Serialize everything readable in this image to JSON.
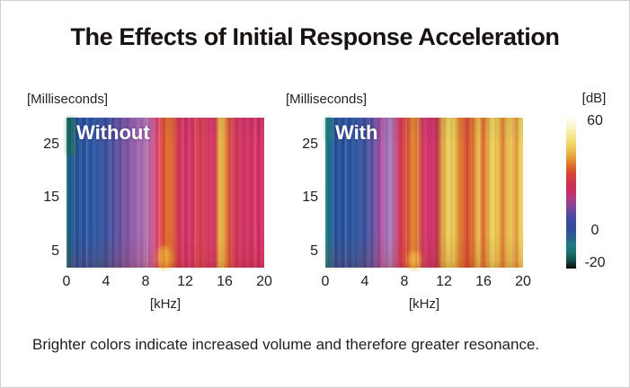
{
  "title": "The Effects of Initial Response Acceleration",
  "caption": "Brighter colors indicate increased volume and therefore greater resonance.",
  "chart_data": {
    "type": "heatmap",
    "description": "Two spectrograms (frequency vs. time, color = level in dB) comparing piano sound without and with Initial Response Acceleration.",
    "panels": [
      {
        "label": "Without",
        "y_axis_label": "[Milliseconds]",
        "x_axis_label": "[kHz]",
        "x_ticks": [
          0,
          4,
          8,
          12,
          16,
          20
        ],
        "y_ticks": [
          25,
          15,
          5
        ],
        "x_range_khz": [
          0,
          20
        ],
        "y_range_ms": [
          2,
          30
        ],
        "summary": "Low frequencies (0-8 kHz) stay blue/purple (lower level); 9-20 kHz is mostly red/magenta with isolated bright orange-yellow streaks near 10.5 kHz and 15.5 kHz.",
        "gradient_stops": [
          {
            "pos": 0,
            "color": "#1f7e7a"
          },
          {
            "pos": 1.5,
            "color": "#1b5f86"
          },
          {
            "pos": 4,
            "color": "#224f97"
          },
          {
            "pos": 8,
            "color": "#27519e"
          },
          {
            "pos": 14,
            "color": "#2c57a5"
          },
          {
            "pos": 18,
            "color": "#32519c"
          },
          {
            "pos": 22,
            "color": "#44519f"
          },
          {
            "pos": 27,
            "color": "#684f9f"
          },
          {
            "pos": 31,
            "color": "#7f55a6"
          },
          {
            "pos": 35,
            "color": "#9a5fae"
          },
          {
            "pos": 38,
            "color": "#a96bb4"
          },
          {
            "pos": 41,
            "color": "#b770af"
          },
          {
            "pos": 43,
            "color": "#c25d9c"
          },
          {
            "pos": 45,
            "color": "#d84e7e"
          },
          {
            "pos": 47,
            "color": "#e4485c"
          },
          {
            "pos": 49,
            "color": "#e05038"
          },
          {
            "pos": 51,
            "color": "#e2662c"
          },
          {
            "pos": 53,
            "color": "#df7229"
          },
          {
            "pos": 55,
            "color": "#da4740"
          },
          {
            "pos": 57,
            "color": "#d63359"
          },
          {
            "pos": 60,
            "color": "#d42f66"
          },
          {
            "pos": 63,
            "color": "#d63364"
          },
          {
            "pos": 66,
            "color": "#da4153"
          },
          {
            "pos": 68,
            "color": "#da3f50"
          },
          {
            "pos": 71,
            "color": "#d73560"
          },
          {
            "pos": 74,
            "color": "#d63064"
          },
          {
            "pos": 76,
            "color": "#db5a50"
          },
          {
            "pos": 77.5,
            "color": "#e8a93c"
          },
          {
            "pos": 79,
            "color": "#eaba4a"
          },
          {
            "pos": 80.5,
            "color": "#e2832f"
          },
          {
            "pos": 82,
            "color": "#dc5b36"
          },
          {
            "pos": 84,
            "color": "#d73f55"
          },
          {
            "pos": 87,
            "color": "#d6335f"
          },
          {
            "pos": 90,
            "color": "#d52f63"
          },
          {
            "pos": 93,
            "color": "#d63262"
          },
          {
            "pos": 96,
            "color": "#d42f66"
          },
          {
            "pos": 100,
            "color": "#cf2d68"
          }
        ]
      },
      {
        "label": "With",
        "y_axis_label": "[Milliseconds]",
        "x_axis_label": "[kHz]",
        "x_ticks": [
          0,
          4,
          8,
          12,
          16,
          20
        ],
        "y_ticks": [
          25,
          15,
          5
        ],
        "x_range_khz": [
          0,
          20
        ],
        "y_range_ms": [
          2,
          30
        ],
        "summary": "Noticeably brighter overall: broad yellow/gold and orange regions from 12-20 kHz (higher level), orange band near 8.5-9.5 kHz; low frequencies remain blue/purple.",
        "gradient_stops": [
          {
            "pos": 0,
            "color": "#27918b"
          },
          {
            "pos": 2,
            "color": "#1b6b8e"
          },
          {
            "pos": 5,
            "color": "#235098"
          },
          {
            "pos": 10,
            "color": "#28529f"
          },
          {
            "pos": 15,
            "color": "#2d55a3"
          },
          {
            "pos": 19,
            "color": "#37519e"
          },
          {
            "pos": 23,
            "color": "#55509f"
          },
          {
            "pos": 26,
            "color": "#7b52a4"
          },
          {
            "pos": 28,
            "color": "#b44a9b"
          },
          {
            "pos": 30,
            "color": "#a66cb4"
          },
          {
            "pos": 33,
            "color": "#ad7cbd"
          },
          {
            "pos": 35,
            "color": "#b55f9f"
          },
          {
            "pos": 36.5,
            "color": "#cc3f70"
          },
          {
            "pos": 38,
            "color": "#d93a51"
          },
          {
            "pos": 40,
            "color": "#dc4140"
          },
          {
            "pos": 42,
            "color": "#de5b33"
          },
          {
            "pos": 44,
            "color": "#e07c2c"
          },
          {
            "pos": 46,
            "color": "#e28a2e"
          },
          {
            "pos": 48,
            "color": "#d84d52"
          },
          {
            "pos": 51,
            "color": "#d23268"
          },
          {
            "pos": 54,
            "color": "#cf2e6c"
          },
          {
            "pos": 56,
            "color": "#c52d55"
          },
          {
            "pos": 58,
            "color": "#cf6f3a"
          },
          {
            "pos": 60,
            "color": "#e7b84a"
          },
          {
            "pos": 62,
            "color": "#eccb56"
          },
          {
            "pos": 64,
            "color": "#edd05c"
          },
          {
            "pos": 66,
            "color": "#e9b23e"
          },
          {
            "pos": 68,
            "color": "#e2862f"
          },
          {
            "pos": 70,
            "color": "#dc5f2c"
          },
          {
            "pos": 72,
            "color": "#d8442e"
          },
          {
            "pos": 74,
            "color": "#dd6e2d"
          },
          {
            "pos": 76,
            "color": "#e59a36"
          },
          {
            "pos": 78,
            "color": "#ecc04b"
          },
          {
            "pos": 80,
            "color": "#da5c2b"
          },
          {
            "pos": 82,
            "color": "#e8ad3e"
          },
          {
            "pos": 84,
            "color": "#edcb55"
          },
          {
            "pos": 86,
            "color": "#eed65f"
          },
          {
            "pos": 88,
            "color": "#e8a938"
          },
          {
            "pos": 90,
            "color": "#e18132"
          },
          {
            "pos": 92,
            "color": "#eabf4a"
          },
          {
            "pos": 94,
            "color": "#edd05a"
          },
          {
            "pos": 96,
            "color": "#e49134"
          },
          {
            "pos": 98,
            "color": "#ecc553"
          },
          {
            "pos": 100,
            "color": "#edd35d"
          }
        ]
      }
    ],
    "colorbar": {
      "label": "[dB]",
      "ticks": [
        60,
        0,
        -20
      ],
      "range": [
        -20,
        60
      ],
      "stops": [
        {
          "pos": 0,
          "color": "#ffffff"
        },
        {
          "pos": 4,
          "color": "#fdf8e4"
        },
        {
          "pos": 10,
          "color": "#f8eeb0"
        },
        {
          "pos": 16,
          "color": "#f3de77"
        },
        {
          "pos": 22,
          "color": "#eec44e"
        },
        {
          "pos": 28,
          "color": "#e69a36"
        },
        {
          "pos": 33,
          "color": "#dc6a2c"
        },
        {
          "pos": 38,
          "color": "#d64430"
        },
        {
          "pos": 44,
          "color": "#cf3350"
        },
        {
          "pos": 50,
          "color": "#c62e68"
        },
        {
          "pos": 55,
          "color": "#a93e85"
        },
        {
          "pos": 60,
          "color": "#7f4699"
        },
        {
          "pos": 65,
          "color": "#52489f"
        },
        {
          "pos": 70,
          "color": "#3a4a9e"
        },
        {
          "pos": 75,
          "color": "#2f5096"
        },
        {
          "pos": 80,
          "color": "#28648c"
        },
        {
          "pos": 85,
          "color": "#227a80"
        },
        {
          "pos": 90,
          "color": "#1b6e6c"
        },
        {
          "pos": 95,
          "color": "#114b47"
        },
        {
          "pos": 100,
          "color": "#0a0d0c"
        }
      ]
    }
  }
}
